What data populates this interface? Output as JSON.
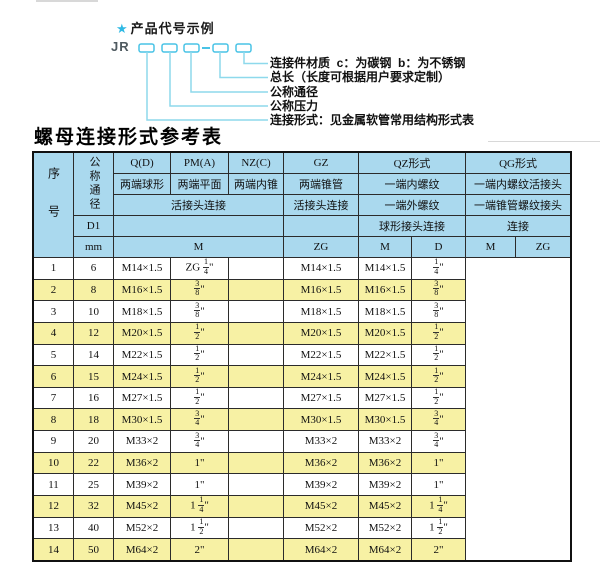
{
  "diagram": {
    "star": "★",
    "title": "产品代号示例",
    "prefix": "JR",
    "labels": [
      "连接件材质  c：为碳钢  b：为不锈钢",
      "总长（长度可根据用户要求定制）",
      "公称通径",
      "公称压力",
      "连接形式：见金属软管常用结构形式表"
    ],
    "colors": {
      "accent": "#2fb9e4",
      "box_stroke": "#49c3e6",
      "line": "#8ed9ec"
    }
  },
  "table": {
    "title": "螺母连接形式参考表",
    "colors": {
      "header_bg": "#aad9ee",
      "row": "#ffffff",
      "row_alt": "#f7f1a4",
      "border": "#2b2b2b"
    },
    "header": {
      "seq": "序号",
      "dn_label": "公称通径",
      "d1": "D1",
      "unit": "mm",
      "q": "Q(D)",
      "pm": "PM(A)",
      "nz": "NZ(C)",
      "gz": "GZ",
      "qz": "QZ形式",
      "qg": "QG形式",
      "q_sub": "两端球形",
      "pm_sub": "两端平面",
      "nz_sub": "两端内锥",
      "gz_sub": "两端锥管",
      "qz_sub1": "一端内螺纹",
      "qg_sub1": "一端内螺纹活接头",
      "union_conn": "活接头连接",
      "gz_conn": "活接头连接",
      "qz_sub2": "一端外螺纹",
      "qg_sub2": "一端锥管螺纹接头",
      "qz_conn": "球形接头连接",
      "qg_conn": "连接",
      "m": "M",
      "zg": "ZG",
      "qz_m": "M",
      "qz_d": "D",
      "qg_m": "M",
      "qg_zg": "ZG"
    },
    "columns_order": [
      "seq",
      "dn",
      "m",
      "gz",
      "qz_m",
      "qz_d",
      "qg_m",
      "qg_zg"
    ],
    "rows": [
      {
        "seq": "1",
        "dn": "6",
        "m": "M14×1.5",
        "gz": "ZG 1/4\"",
        "qz_m": "",
        "qz_d": "M14×1.5",
        "qg_m": "M14×1.5",
        "qg_zg": "1/4\""
      },
      {
        "seq": "2",
        "dn": "8",
        "m": "M16×1.5",
        "gz": "3/8\"",
        "qz_m": "",
        "qz_d": "M16×1.5",
        "qg_m": "M16×1.5",
        "qg_zg": "3/8\""
      },
      {
        "seq": "3",
        "dn": "10",
        "m": "M18×1.5",
        "gz": "3/8\"",
        "qz_m": "",
        "qz_d": "M18×1.5",
        "qg_m": "M18×1.5",
        "qg_zg": "3/8\""
      },
      {
        "seq": "4",
        "dn": "12",
        "m": "M20×1.5",
        "gz": "1/2\"",
        "qz_m": "",
        "qz_d": "M20×1.5",
        "qg_m": "M20×1.5",
        "qg_zg": "1/2\""
      },
      {
        "seq": "5",
        "dn": "14",
        "m": "M22×1.5",
        "gz": "1/2\"",
        "qz_m": "",
        "qz_d": "M22×1.5",
        "qg_m": "M22×1.5",
        "qg_zg": "1/2\""
      },
      {
        "seq": "6",
        "dn": "15",
        "m": "M24×1.5",
        "gz": "1/2\"",
        "qz_m": "",
        "qz_d": "M24×1.5",
        "qg_m": "M24×1.5",
        "qg_zg": "1/2\""
      },
      {
        "seq": "7",
        "dn": "16",
        "m": "M27×1.5",
        "gz": "1/2\"",
        "qz_m": "",
        "qz_d": "M27×1.5",
        "qg_m": "M27×1.5",
        "qg_zg": "1/2\""
      },
      {
        "seq": "8",
        "dn": "18",
        "m": "M30×1.5",
        "gz": "3/4\"",
        "qz_m": "",
        "qz_d": "M30×1.5",
        "qg_m": "M30×1.5",
        "qg_zg": "3/4\""
      },
      {
        "seq": "9",
        "dn": "20",
        "m": "M33×2",
        "gz": "3/4\"",
        "qz_m": "",
        "qz_d": "M33×2",
        "qg_m": "M33×2",
        "qg_zg": "3/4\""
      },
      {
        "seq": "10",
        "dn": "22",
        "m": "M36×2",
        "gz": "1\"",
        "qz_m": "",
        "qz_d": "M36×2",
        "qg_m": "M36×2",
        "qg_zg": "1\""
      },
      {
        "seq": "11",
        "dn": "25",
        "m": "M39×2",
        "gz": "1\"",
        "qz_m": "",
        "qz_d": "M39×2",
        "qg_m": "M39×2",
        "qg_zg": "1\""
      },
      {
        "seq": "12",
        "dn": "32",
        "m": "M45×2",
        "gz": "1 1/4\"",
        "qz_m": "",
        "qz_d": "M45×2",
        "qg_m": "M45×2",
        "qg_zg": "1 1/4\""
      },
      {
        "seq": "13",
        "dn": "40",
        "m": "M52×2",
        "gz": "1 1/2\"",
        "qz_m": "",
        "qz_d": "M52×2",
        "qg_m": "M52×2",
        "qg_zg": "1 1/2\""
      },
      {
        "seq": "14",
        "dn": "50",
        "m": "M64×2",
        "gz": "2\"",
        "qz_m": "",
        "qz_d": "M64×2",
        "qg_m": "M64×2",
        "qg_zg": "2\""
      }
    ]
  }
}
